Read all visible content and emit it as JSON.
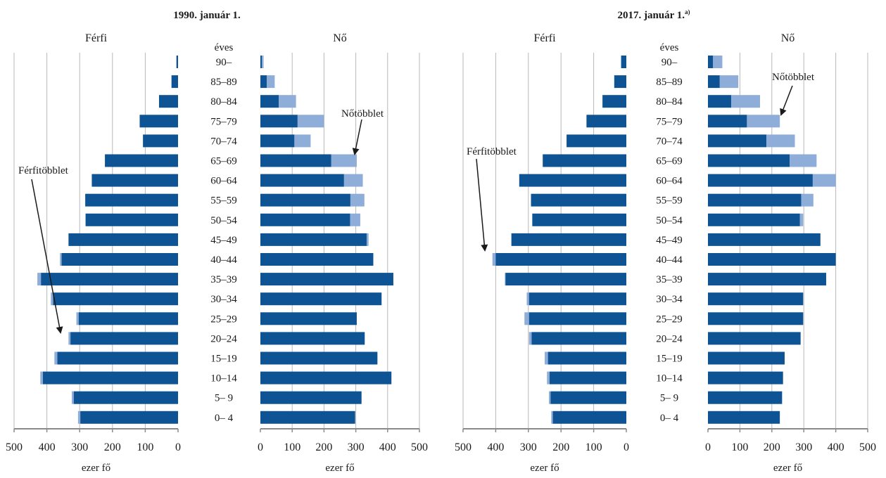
{
  "colors": {
    "base": "#0e5393",
    "surplus": "#8fadd9",
    "grid": "#b8b8b8",
    "axis": "#8a8a8a",
    "text": "#1a1a1a"
  },
  "age_header": "éves",
  "chart_data": [
    {
      "type": "bar",
      "title": "1990. január 1.",
      "title_sup": "",
      "categories": [
        "90–",
        "85–89",
        "80–84",
        "75–79",
        "70–74",
        "65–69",
        "60–64",
        "55–59",
        "50–54",
        "45–49",
        "40–44",
        "35–39",
        "30–34",
        "25–29",
        "20–24",
        "15–19",
        "10–14",
        "5– 9",
        "0– 4"
      ],
      "series": [
        {
          "name": "Férfi",
          "values": [
            5,
            20,
            58,
            117,
            107,
            223,
            263,
            283,
            282,
            334,
            360,
            429,
            388,
            310,
            334,
            377,
            420,
            324,
            305
          ]
        },
        {
          "name": "Nő",
          "values": [
            10,
            45,
            112,
            200,
            158,
            303,
            322,
            327,
            314,
            340,
            355,
            418,
            381,
            303,
            328,
            368,
            412,
            318,
            298
          ]
        }
      ],
      "xlim": [
        0,
        500
      ],
      "ticks": [
        "0",
        "100",
        "200",
        "300",
        "400",
        "500"
      ],
      "xlabel": "ezer fő",
      "annotations": [
        "Férfitöbblet",
        "Nőtöbblet"
      ]
    },
    {
      "type": "bar",
      "title": "2017. január 1.",
      "title_sup": "a)",
      "categories": [
        "90–",
        "85–89",
        "80–84",
        "75–79",
        "70–74",
        "65–69",
        "60–64",
        "55–59",
        "50–54",
        "45–49",
        "40–44",
        "35–39",
        "30–34",
        "25–29",
        "20–24",
        "15–19",
        "10–14",
        "5– 9",
        "0– 4"
      ],
      "series": [
        {
          "name": "Férfi",
          "values": [
            16,
            37,
            73,
            122,
            183,
            256,
            328,
            292,
            288,
            352,
            410,
            372,
            305,
            312,
            298,
            250,
            243,
            237,
            230
          ]
        },
        {
          "name": "Nő",
          "values": [
            45,
            95,
            163,
            225,
            272,
            340,
            400,
            330,
            298,
            352,
            400,
            370,
            298,
            298,
            290,
            240,
            235,
            232,
            225
          ]
        }
      ],
      "xlim": [
        0,
        500
      ],
      "ticks": [
        "0",
        "100",
        "200",
        "300",
        "400",
        "500"
      ],
      "xlabel": "ezer fő",
      "annotations": [
        "Férfitöbblet",
        "Nőtöbblet"
      ]
    }
  ]
}
